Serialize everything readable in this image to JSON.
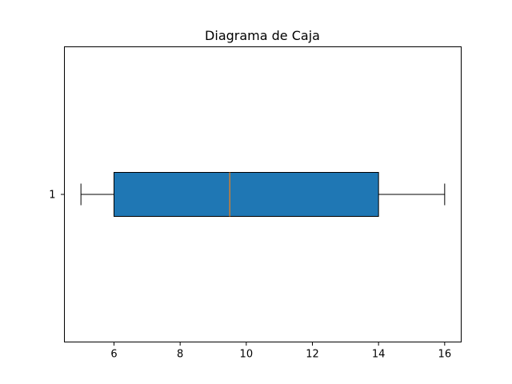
{
  "chart_data": {
    "type": "box",
    "orientation": "horizontal",
    "title": "Diagrama de Caja",
    "xlabel": "",
    "ylabel": "",
    "xlim": [
      4.5,
      16.5
    ],
    "x_ticks": [
      6,
      8,
      10,
      12,
      14,
      16
    ],
    "y_ticks": [
      "1"
    ],
    "grid": false,
    "boxes": [
      {
        "label": "1",
        "whisker_low": 5,
        "q1": 6,
        "median": 9.5,
        "q3": 14,
        "whisker_high": 16
      }
    ],
    "colors": {
      "box_fill": "#1f77b4",
      "median_line": "#ff7f0e",
      "edges": "#000000"
    }
  }
}
